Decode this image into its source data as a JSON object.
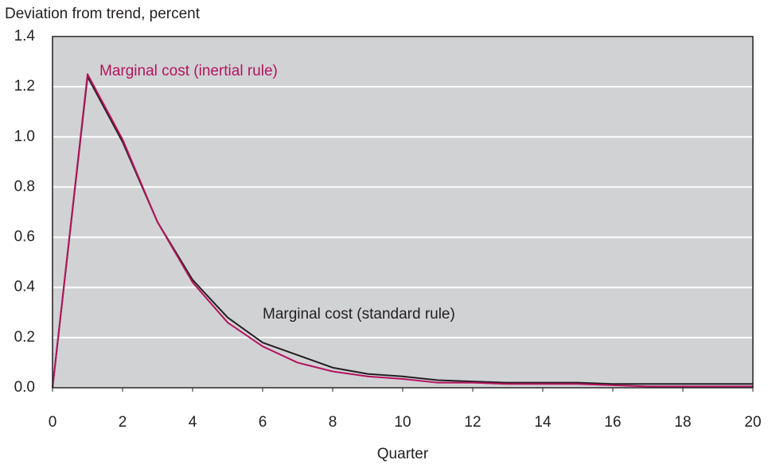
{
  "chart_data": {
    "type": "line",
    "y_label": "Deviation from trend, percent",
    "x_label": "Quarter",
    "x": [
      0,
      1,
      2,
      3,
      4,
      5,
      6,
      7,
      8,
      9,
      10,
      11,
      12,
      13,
      14,
      15,
      16,
      17,
      18,
      19,
      20
    ],
    "series": [
      {
        "name": "Marginal cost (standard rule)",
        "color": "#231f20",
        "values": [
          0,
          1.24,
          0.98,
          0.66,
          0.43,
          0.28,
          0.18,
          0.13,
          0.08,
          0.055,
          0.045,
          0.03,
          0.025,
          0.02,
          0.02,
          0.02,
          0.015,
          0.015,
          0.015,
          0.015,
          0.015
        ]
      },
      {
        "name": "Marginal cost (inertial rule)",
        "color": "#b5135e",
        "values": [
          0,
          1.25,
          0.99,
          0.66,
          0.42,
          0.26,
          0.165,
          0.1,
          0.065,
          0.045,
          0.035,
          0.02,
          0.02,
          0.015,
          0.015,
          0.015,
          0.01,
          0.005,
          0.005,
          0.005,
          0.005
        ]
      }
    ],
    "xlim": [
      0,
      20
    ],
    "xticks": [
      0,
      2,
      4,
      6,
      8,
      10,
      12,
      14,
      16,
      18,
      20
    ],
    "ylim": [
      0,
      1.4
    ],
    "yticks": [
      {
        "value": 0,
        "label": "0.0"
      },
      0.2,
      0.4,
      0.6,
      0.8,
      {
        "value": 1,
        "label": "1.0"
      },
      1.2,
      1.4
    ],
    "grid": true
  }
}
